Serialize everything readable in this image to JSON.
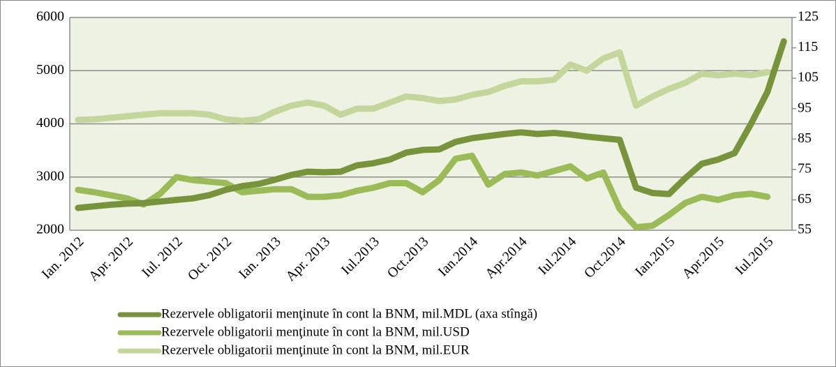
{
  "chart_data": {
    "type": "line",
    "categories": [
      "Ian. 2012",
      null,
      null,
      "Apr. 2012",
      null,
      null,
      "Iul. 2012",
      null,
      null,
      "Oct. 2012",
      null,
      null,
      "Ian. 2013",
      null,
      null,
      "Apr. 2013",
      null,
      null,
      "Iul.2013",
      null,
      null,
      "Oct.2013",
      null,
      null,
      "Ian.2014",
      null,
      null,
      "Apr.2014",
      null,
      null,
      "Iul.2014",
      null,
      null,
      "Oct.2014",
      null,
      null,
      "Ian.2015",
      null,
      null,
      "Apr.2015",
      null,
      null,
      "Iul.2015",
      null
    ],
    "series": [
      {
        "name": "Rezervele obligatorii menţinute în cont la BNM, mil.MDL (axa stîngă)",
        "color": "#77933c",
        "values": [
          2420,
          2450,
          2480,
          2500,
          2510,
          2540,
          2570,
          2600,
          2660,
          2760,
          2830,
          2870,
          2950,
          3040,
          3100,
          3090,
          3100,
          3220,
          3260,
          3330,
          3460,
          3510,
          3520,
          3660,
          3730,
          3770,
          3810,
          3840,
          3810,
          3830,
          3800,
          3760,
          3730,
          3700,
          2800,
          2700,
          2680,
          2980,
          3250,
          3330,
          3450,
          4000,
          4600,
          5550
        ]
      },
      {
        "name": "Rezervele obligatorii menţinute în cont la BNM, mil.USD",
        "color": "#9bbb59",
        "axis": "y2",
        "values": [
          68.3,
          67.5,
          66.5,
          65.5,
          63.5,
          67,
          72.5,
          71.5,
          71,
          70.5,
          67.5,
          68,
          68.5,
          68.5,
          66,
          66,
          66.5,
          68,
          69,
          70.5,
          70.5,
          67.5,
          71.5,
          78.5,
          79.5,
          70,
          73.5,
          74,
          73,
          74.5,
          76,
          72,
          74,
          62,
          56,
          56.5,
          60,
          64,
          66,
          65,
          66.5,
          67,
          66,
          null
        ]
      },
      {
        "name": "Rezervele obligatorii menţinute în cont la BNM, mil.EUR",
        "color": "#c3d69b",
        "axis": "y2",
        "values": [
          91.3,
          91.5,
          92,
          92.5,
          93,
          93.5,
          93.5,
          93.5,
          93,
          91.5,
          91,
          91.5,
          94,
          96,
          97,
          96,
          93,
          95,
          95,
          97,
          99,
          98.5,
          97.5,
          98,
          99.5,
          100.5,
          102.5,
          104,
          104,
          104.5,
          109.5,
          107.5,
          111.5,
          113.5,
          96,
          99,
          101.5,
          103.5,
          106.5,
          106,
          106.5,
          106,
          107,
          null
        ]
      }
    ],
    "ylim": [
      2000,
      6000
    ],
    "yticks": [
      2000,
      3000,
      4000,
      5000,
      6000
    ],
    "y2lim": [
      55,
      125
    ],
    "y2ticks": [
      55,
      65,
      75,
      85,
      95,
      105,
      115,
      125
    ],
    "grid": true,
    "legend": "bottom"
  }
}
